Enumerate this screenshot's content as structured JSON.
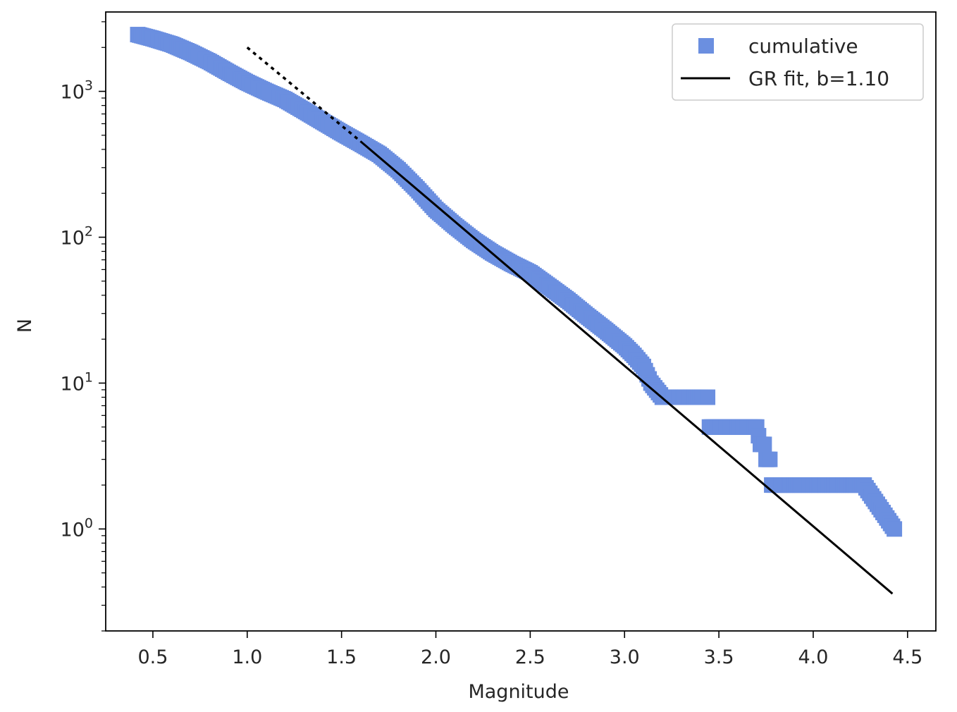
{
  "chart_data": {
    "type": "scatter",
    "title": "",
    "xlabel": "Magnitude",
    "ylabel": "N",
    "xlim": [
      0.25,
      4.65
    ],
    "ylim": [
      0.2,
      3500
    ],
    "yscale": "log",
    "grid": false,
    "legend_position": "top-right",
    "xticks": [
      0.5,
      1.0,
      1.5,
      2.0,
      2.5,
      3.0,
      3.5,
      4.0,
      4.5
    ],
    "xtick_labels": [
      "0.5",
      "1.0",
      "1.5",
      "2.0",
      "2.5",
      "3.0",
      "3.5",
      "4.0",
      "4.5"
    ],
    "yticks": [
      1,
      10,
      100,
      1000
    ],
    "ytick_labels": [
      {
        "base": "10",
        "exp": "0"
      },
      {
        "base": "10",
        "exp": "1"
      },
      {
        "base": "10",
        "exp": "2"
      },
      {
        "base": "10",
        "exp": "3"
      }
    ],
    "series": [
      {
        "name": "cumulative",
        "kind": "markers",
        "marker": "square",
        "color": "#6b8fe0",
        "magnitude_step": 0.01,
        "profile_x": [
          0.42,
          0.5,
          0.6,
          0.7,
          0.8,
          0.9,
          1.0,
          1.1,
          1.2,
          1.3,
          1.4,
          1.5,
          1.6,
          1.7,
          1.8,
          1.9,
          2.0,
          2.1,
          2.2,
          2.3,
          2.4,
          2.5,
          2.6,
          2.7,
          2.8,
          2.9,
          3.0,
          3.05,
          3.1,
          3.14,
          3.2,
          3.3,
          3.4,
          3.44,
          3.45,
          3.5,
          3.6,
          3.7,
          3.72,
          3.74,
          3.75,
          3.77,
          3.78,
          3.9,
          4.0,
          4.1,
          4.2,
          4.27,
          4.43
        ],
        "profile_y": [
          2450,
          2300,
          2100,
          1850,
          1600,
          1350,
          1150,
          1000,
          880,
          740,
          620,
          520,
          440,
          370,
          290,
          215,
          155,
          120,
          95,
          78,
          66,
          57,
          46,
          37,
          29,
          23,
          18,
          15.5,
          13,
          10,
          8,
          8,
          8,
          8,
          5,
          5,
          5,
          5,
          3.8,
          3.8,
          3,
          3,
          2,
          2,
          2,
          2,
          2,
          2,
          1
        ]
      },
      {
        "name": "GR fit, b=1.10",
        "kind": "line",
        "color": "#000000",
        "x": [
          1.6,
          4.42
        ],
        "y": [
          455,
          0.36
        ]
      },
      {
        "name": "",
        "kind": "line",
        "style": "dotted",
        "color": "#000000",
        "x": [
          1.0,
          1.6
        ],
        "y": [
          2000,
          455
        ]
      }
    ]
  }
}
